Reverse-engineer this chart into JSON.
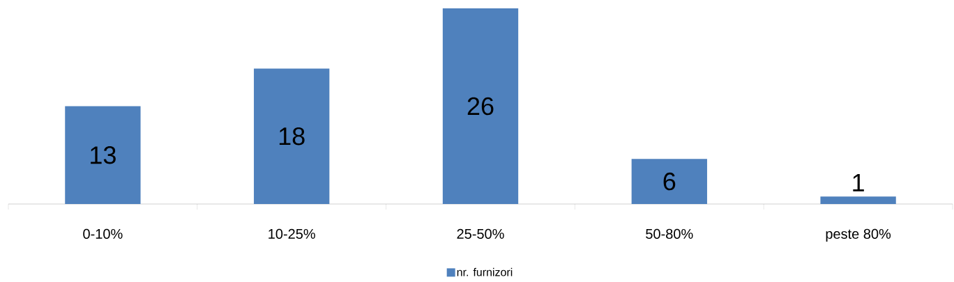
{
  "chart_data": {
    "type": "bar",
    "categories": [
      "0-10%",
      "10-25%",
      "25-50%",
      "50-80%",
      "peste 80%"
    ],
    "series": [
      {
        "name": "nr. furnizori",
        "color": "#4f81bd",
        "values": [
          13,
          18,
          26,
          6,
          1
        ]
      }
    ],
    "data_labels": true,
    "legend": "bottom"
  }
}
